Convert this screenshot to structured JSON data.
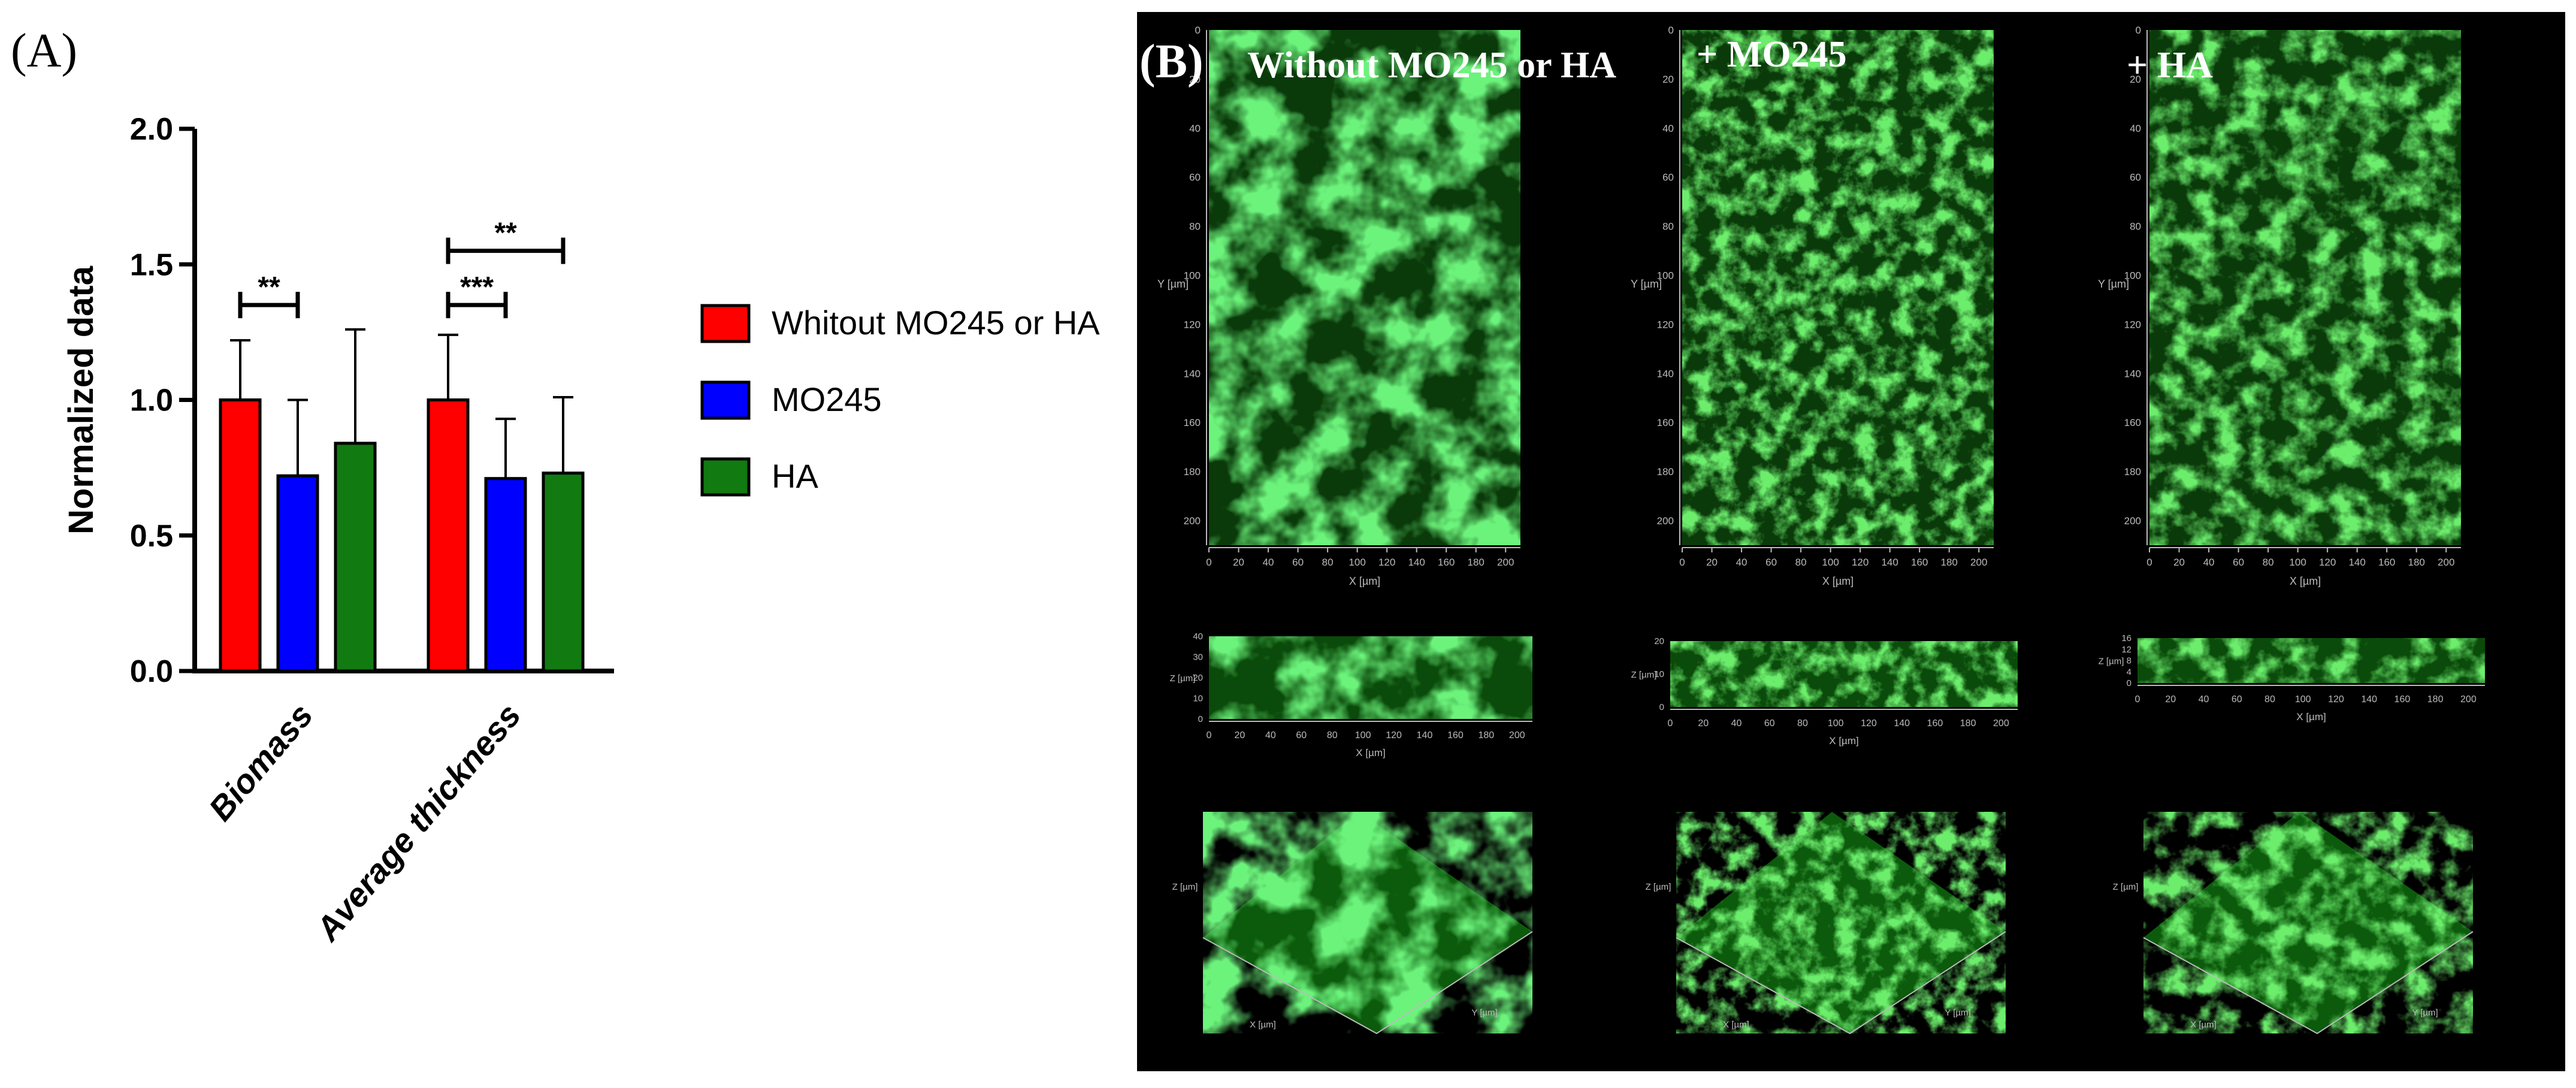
{
  "panel_a": {
    "label": "(A)"
  },
  "chart_data": {
    "type": "bar",
    "ylabel": "Normalized data",
    "xlabel": "",
    "ylim": [
      0,
      2.0
    ],
    "yticks": [
      "0.0",
      "0.5",
      "1.0",
      "1.5",
      "2.0"
    ],
    "categories": [
      "Biomass",
      "Average thickness"
    ],
    "series": [
      {
        "name": "Whitout MO245 or HA",
        "color": "#ff0000",
        "values": [
          1.0,
          1.0
        ],
        "errors": [
          0.22,
          0.24
        ]
      },
      {
        "name": "MO245",
        "color": "#0000ff",
        "values": [
          0.72,
          0.71
        ],
        "errors": [
          0.28,
          0.22
        ]
      },
      {
        "name": "HA",
        "color": "#117a11",
        "values": [
          0.84,
          0.73
        ],
        "errors": [
          0.42,
          0.28
        ]
      }
    ],
    "legend_position": "right",
    "significance": [
      {
        "category": "Biomass",
        "from_series": 0,
        "to_series": 1,
        "y": 1.35,
        "label": "**"
      },
      {
        "category": "Average thickness",
        "from_series": 0,
        "to_series": 1,
        "y": 1.35,
        "label": "***"
      },
      {
        "category": "Average thickness",
        "from_series": 0,
        "to_series": 2,
        "y": 1.55,
        "label": "**"
      }
    ]
  },
  "panel_b": {
    "label": "(B)",
    "columns": [
      {
        "title": "Without MO245 or HA"
      },
      {
        "title": "+ MO245"
      },
      {
        "title": "+ HA"
      }
    ],
    "axis_labels": {
      "x": "X [µm]",
      "y": "Y [µm]",
      "z": "Z [µm]"
    },
    "xy_ticks": [
      "0",
      "20",
      "40",
      "60",
      "80",
      "100",
      "120",
      "140",
      "160",
      "180",
      "200"
    ],
    "z_ticks": [
      [
        "0",
        "10",
        "20",
        "30",
        "40"
      ],
      [
        "0",
        "10",
        "20"
      ],
      [
        "0",
        "4",
        "8",
        "12",
        "16"
      ]
    ],
    "colors": {
      "background": "#000000",
      "fluorescence": "#33dd33"
    }
  }
}
